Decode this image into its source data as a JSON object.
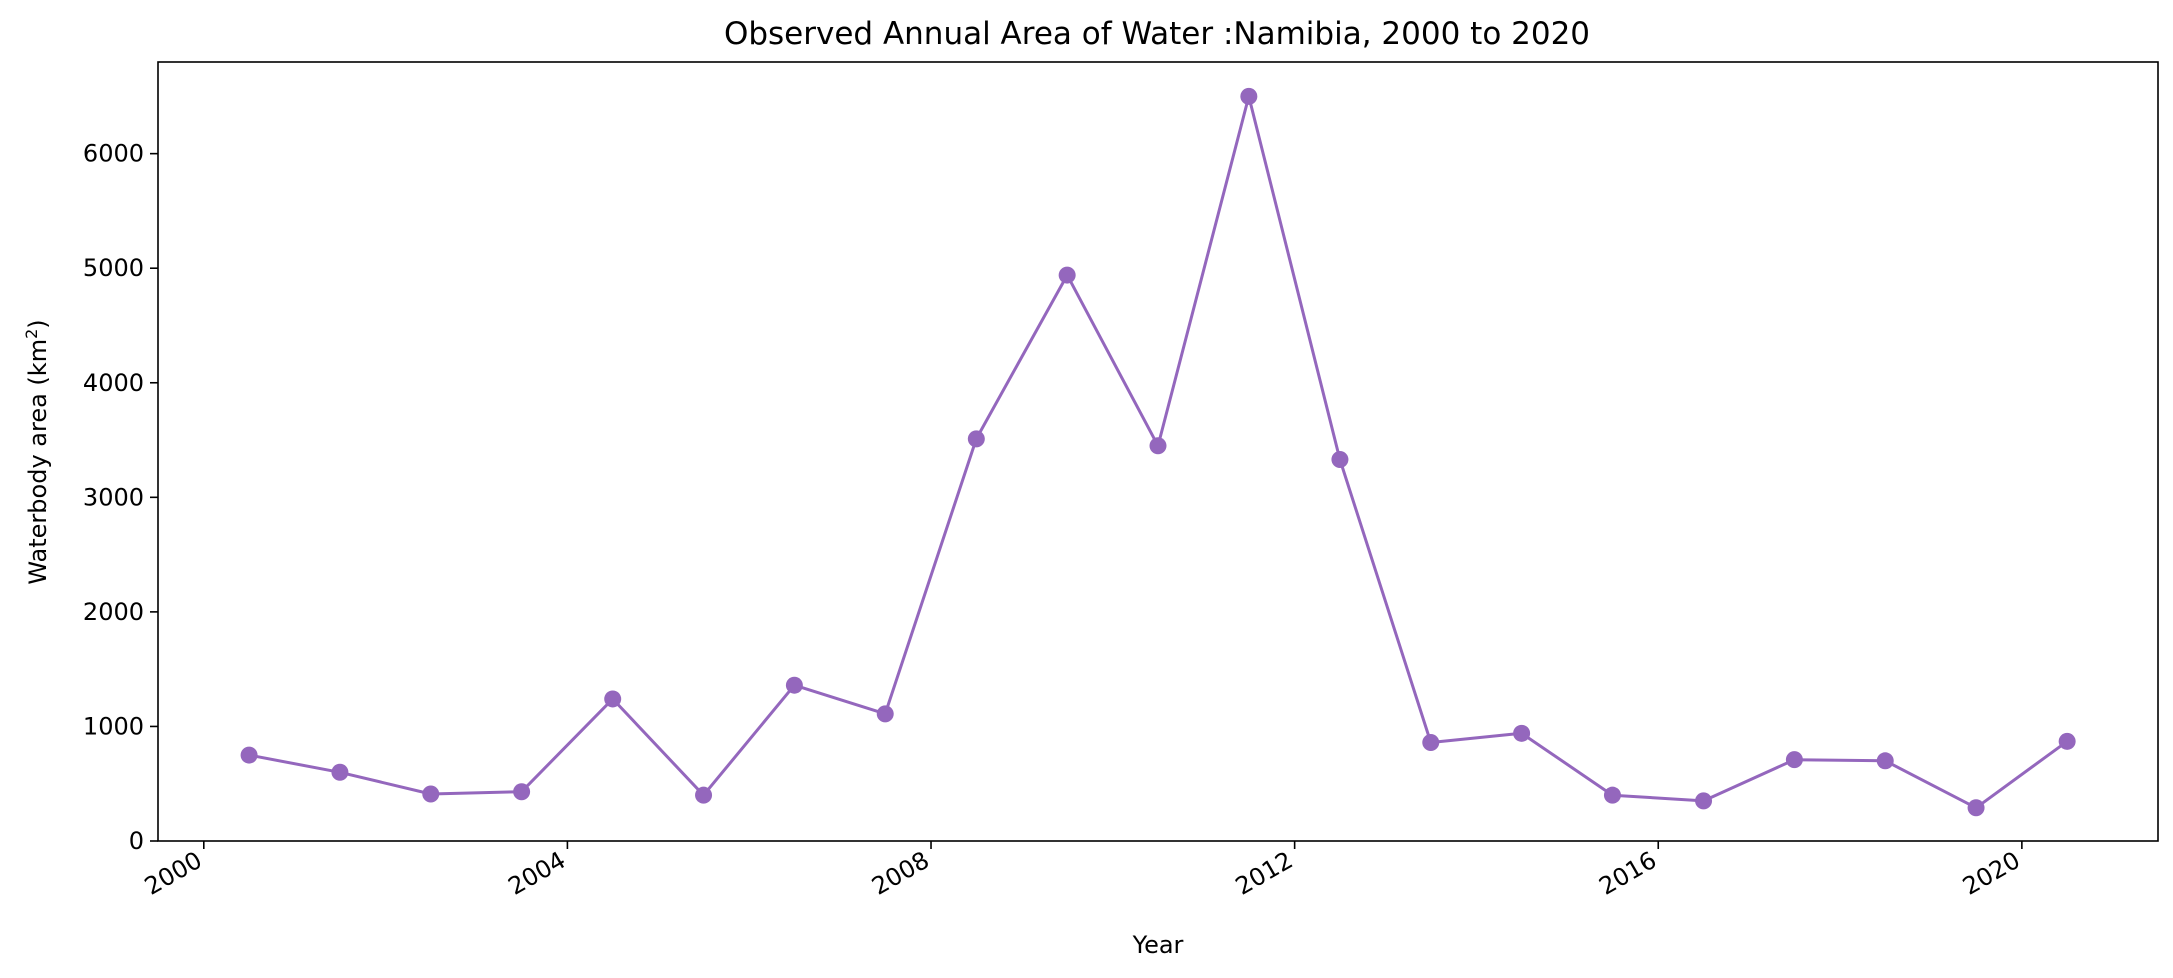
{
  "chart_data": {
    "type": "line",
    "title": "Observed Annual Area of Water :Namibia, 2000 to 2020",
    "xlabel": "Year",
    "ylabel_main": "Waterbody area (km",
    "ylabel_sup": "2",
    "ylabel_close": ")",
    "x_axis_type": "date",
    "xlim": [
      "1999-07-01",
      "2021-07-01"
    ],
    "ylim": [
      0,
      6800
    ],
    "x_ticks": [
      {
        "date": "2000-01-01",
        "label": "2000"
      },
      {
        "date": "2004-01-01",
        "label": "2004"
      },
      {
        "date": "2008-01-01",
        "label": "2008"
      },
      {
        "date": "2012-01-01",
        "label": "2012"
      },
      {
        "date": "2016-01-01",
        "label": "2016"
      },
      {
        "date": "2020-01-01",
        "label": "2020"
      }
    ],
    "y_ticks": [
      0,
      1000,
      2000,
      3000,
      4000,
      5000,
      6000
    ],
    "grid": false,
    "series": [
      {
        "color": "#9467bd",
        "marker": "circle",
        "x": [
          "2000-07-01",
          "2001-07-01",
          "2002-07-01",
          "2003-07-01",
          "2004-07-01",
          "2005-07-01",
          "2006-07-01",
          "2007-07-01",
          "2008-07-01",
          "2009-07-01",
          "2010-07-01",
          "2011-07-01",
          "2012-07-01",
          "2013-07-01",
          "2014-07-01",
          "2015-07-01",
          "2016-07-01",
          "2017-07-01",
          "2018-07-01",
          "2019-07-01",
          "2020-07-01"
        ],
        "y": [
          750,
          600,
          410,
          430,
          1240,
          400,
          1360,
          1110,
          3510,
          4940,
          3450,
          6500,
          3330,
          860,
          940,
          400,
          350,
          710,
          700,
          290,
          870
        ]
      }
    ]
  }
}
